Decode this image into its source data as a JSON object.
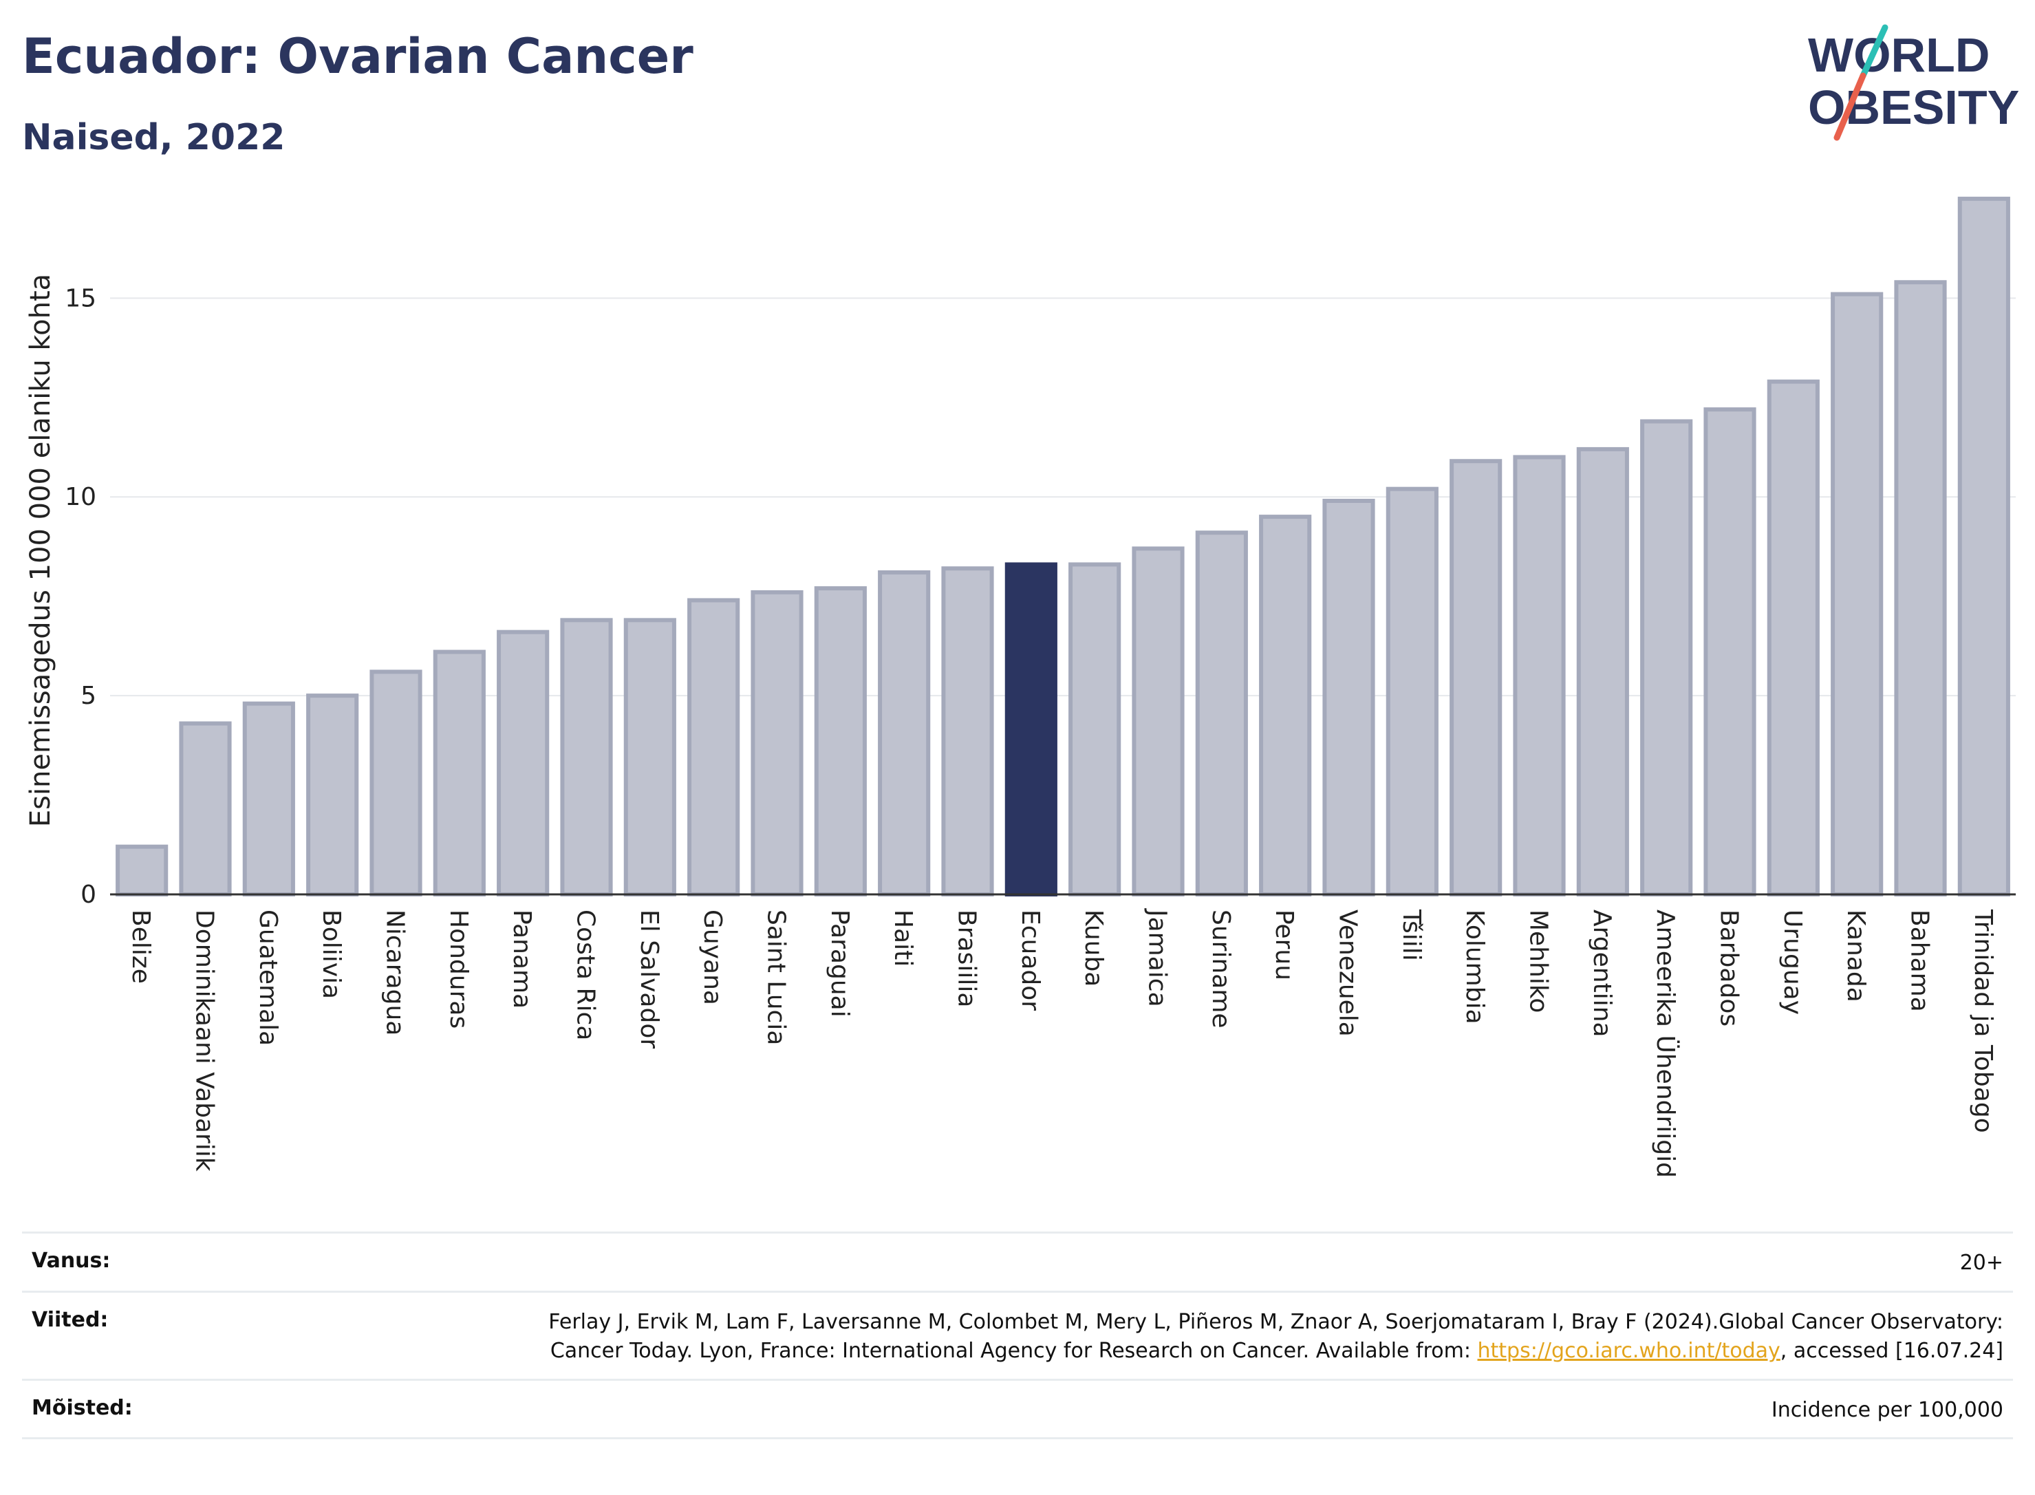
{
  "header": {
    "title": "Ecuador: Ovarian Cancer",
    "subtitle": "Naised, 2022"
  },
  "logo": {
    "line1": "WORLD",
    "line2": "OBESITY",
    "accent_colors": [
      "#2bbfb5",
      "#e8604c"
    ],
    "text_color": "#2b355e"
  },
  "colors": {
    "highlight": "#2b3561",
    "bar_fill": "#bfc2cf",
    "bar_stroke": "#a4a9bb"
  },
  "chart_data": {
    "type": "bar",
    "ylabel": "Esinemissagedus 100 000 elaniku kohta",
    "ylim": [
      0,
      18
    ],
    "yticks": [
      0,
      5,
      10,
      15
    ],
    "grid": true,
    "highlight": "Ecuador",
    "categories": [
      "Belize",
      "Dominikaani Vabariik",
      "Guatemala",
      "Boliivia",
      "Nicaragua",
      "Honduras",
      "Panama",
      "Costa Rica",
      "El Salvador",
      "Guyana",
      "Saint Lucia",
      "Paraguai",
      "Haiti",
      "Brasiilia",
      "Ecuador",
      "Kuuba",
      "Jamaica",
      "Suriname",
      "Peruu",
      "Venezuela",
      "Tšiili",
      "Kolumbia",
      "Mehhiko",
      "Argentiina",
      "Ameerika Ühendriigid",
      "Barbados",
      "Uruguay",
      "Kanada",
      "Bahama",
      "Trinidad ja Tobago"
    ],
    "values": [
      1.2,
      4.3,
      4.8,
      5.0,
      5.6,
      6.1,
      6.6,
      6.9,
      6.9,
      7.4,
      7.6,
      7.7,
      8.1,
      8.2,
      8.3,
      8.3,
      8.7,
      9.1,
      9.5,
      9.9,
      10.2,
      10.9,
      11.0,
      11.2,
      11.9,
      12.2,
      12.9,
      15.1,
      15.4,
      17.5
    ]
  },
  "meta": {
    "age_label": "Vanus:",
    "age_value": "20+",
    "refs_label": "Viited:",
    "refs_text_before": "Ferlay J, Ervik M, Lam F, Laversanne M, Colombet M, Mery L, Piñeros M, Znaor A, Soerjomataram I, Bray F (2024).Global Cancer Observatory: Cancer Today. Lyon, France: International Agency for Research on Cancer. Available from: ",
    "refs_link": "https://gco.iarc.who.int/today",
    "refs_text_after": ", accessed [16.07.24]",
    "defs_label": "Mõisted:",
    "defs_value": "Incidence per 100,000"
  }
}
